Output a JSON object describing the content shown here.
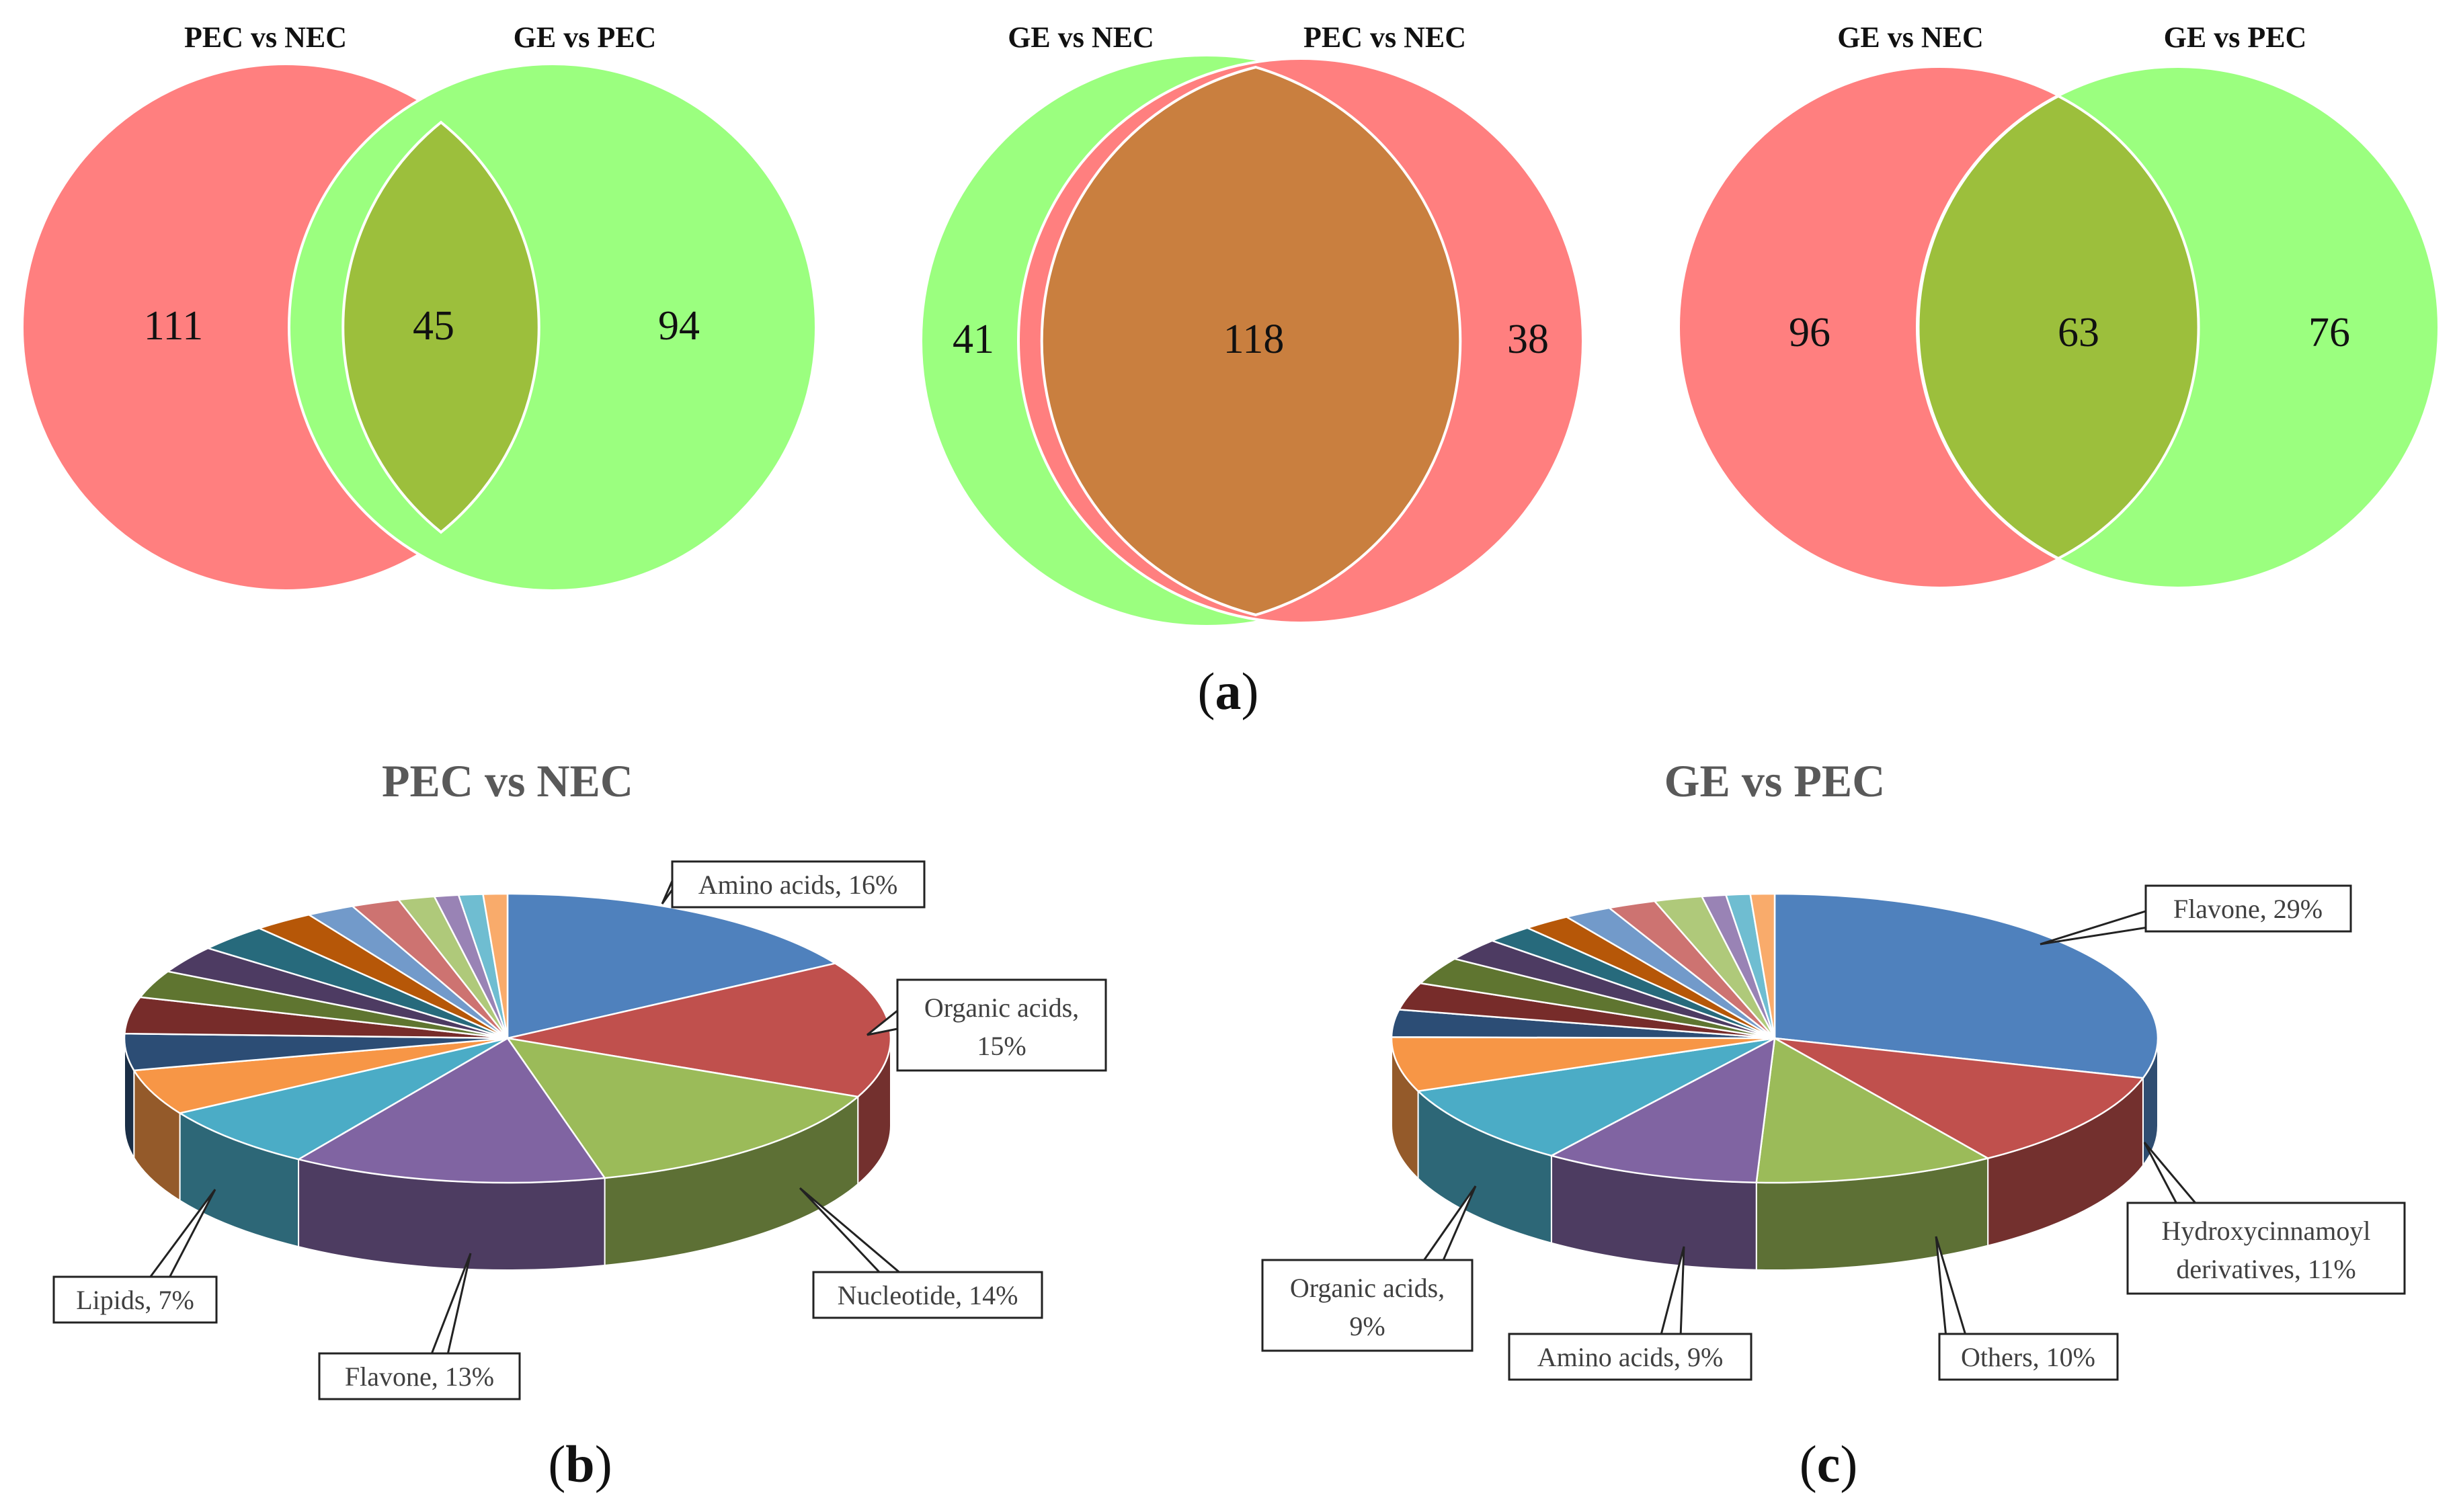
{
  "colors": {
    "red_set": "#ff7f7f",
    "green_set": "#9bff7f",
    "overlap_green": "#9cbf3c",
    "overlap_orange": "#c97f3f"
  },
  "chart_data": [
    {
      "type": "venn",
      "panel": "a",
      "sets": [
        "PEC vs NEC",
        "GE vs PEC"
      ],
      "title_left": "PEC vs NEC",
      "title_right": "GE vs PEC",
      "only_left": "111",
      "intersection": "45",
      "only_right": "94"
    },
    {
      "type": "venn",
      "panel": "a",
      "sets": [
        "GE vs NEC",
        "PEC vs NEC"
      ],
      "title_left": "GE vs NEC",
      "title_right": "PEC vs NEC",
      "only_left": "41",
      "intersection": "118",
      "only_right": "38"
    },
    {
      "type": "venn",
      "panel": "a",
      "sets": [
        "GE vs NEC",
        "GE vs PEC"
      ],
      "title_left": "GE vs NEC",
      "title_right": "GE vs PEC",
      "only_left": "96",
      "intersection": "63",
      "only_right": "76"
    },
    {
      "type": "pie",
      "panel": "b",
      "title": "PEC vs NEC",
      "slices": [
        {
          "label": "Amino acids, 16%",
          "value": 16,
          "color": "#4f81bd"
        },
        {
          "label": "Organic acids, 15%",
          "value": 15,
          "color": "#c0504d"
        },
        {
          "label": "Nucleotide, 14%",
          "value": 14,
          "color": "#9bbb59"
        },
        {
          "label": "Flavone, 13%",
          "value": 13,
          "color": "#8064a2"
        },
        {
          "label": "Lipids, 7%",
          "value": 7,
          "color": "#4bacc6"
        },
        {
          "label": "",
          "value": 5,
          "color": "#f79646"
        },
        {
          "label": "",
          "value": 4,
          "color": "#2c4d75"
        },
        {
          "label": "",
          "value": 4,
          "color": "#772c2a"
        },
        {
          "label": "",
          "value": 3,
          "color": "#5f7530"
        },
        {
          "label": "",
          "value": 3,
          "color": "#4d3b62"
        },
        {
          "label": "",
          "value": 3,
          "color": "#276a7c"
        },
        {
          "label": "",
          "value": 2.5,
          "color": "#b65708"
        },
        {
          "label": "",
          "value": 2,
          "color": "#729aca"
        },
        {
          "label": "",
          "value": 2,
          "color": "#cd7371"
        },
        {
          "label": "",
          "value": 1.5,
          "color": "#afc97a"
        },
        {
          "label": "",
          "value": 1,
          "color": "#9983b5"
        },
        {
          "label": "",
          "value": 1,
          "color": "#6fbdd1"
        },
        {
          "label": "",
          "value": 1,
          "color": "#f9ab6b"
        }
      ]
    },
    {
      "type": "pie",
      "panel": "c",
      "title": "GE vs PEC",
      "slices": [
        {
          "label": "Flavone, 29%",
          "value": 29,
          "color": "#4f81bd"
        },
        {
          "label": "Hydroxycinnamoyl derivatives, 11%",
          "value": 11,
          "color": "#c0504d"
        },
        {
          "label": "Others, 10%",
          "value": 10,
          "color": "#9bbb59"
        },
        {
          "label": "Amino acids, 9%",
          "value": 9,
          "color": "#8064a2"
        },
        {
          "label": "Organic acids, 9%",
          "value": 9,
          "color": "#4bacc6"
        },
        {
          "label": "",
          "value": 6,
          "color": "#f79646"
        },
        {
          "label": "",
          "value": 3,
          "color": "#2c4d75"
        },
        {
          "label": "",
          "value": 3,
          "color": "#772c2a"
        },
        {
          "label": "",
          "value": 3,
          "color": "#5f7530"
        },
        {
          "label": "",
          "value": 2.5,
          "color": "#4d3b62"
        },
        {
          "label": "",
          "value": 2,
          "color": "#276a7c"
        },
        {
          "label": "",
          "value": 2,
          "color": "#b65708"
        },
        {
          "label": "",
          "value": 2,
          "color": "#729aca"
        },
        {
          "label": "",
          "value": 2,
          "color": "#cd7371"
        },
        {
          "label": "",
          "value": 2,
          "color": "#afc97a"
        },
        {
          "label": "",
          "value": 1,
          "color": "#9983b5"
        },
        {
          "label": "",
          "value": 1,
          "color": "#6fbdd1"
        },
        {
          "label": "",
          "value": 1,
          "color": "#f9ab6b"
        }
      ]
    }
  ],
  "labels": {
    "a_open": "(",
    "a_letter": "a",
    "a_close": ")",
    "b_open": "(",
    "b_letter": "b",
    "b_close": ")",
    "c_open": "(",
    "c_letter": "c",
    "c_close": ")"
  },
  "callouts_b": {
    "amino": "Amino acids, 16%",
    "organic_1": "Organic acids,",
    "organic_2": "15%",
    "nucleotide": "Nucleotide, 14%",
    "flavone": "Flavone, 13%",
    "lipids": "Lipids, 7%"
  },
  "callouts_c": {
    "flavone": "Flavone, 29%",
    "hydroxy_1": "Hydroxycinnamoyl",
    "hydroxy_2": "derivatives, 11%",
    "others": "Others, 10%",
    "amino": "Amino acids, 9%",
    "organic_1": "Organic acids,",
    "organic_2": "9%"
  }
}
